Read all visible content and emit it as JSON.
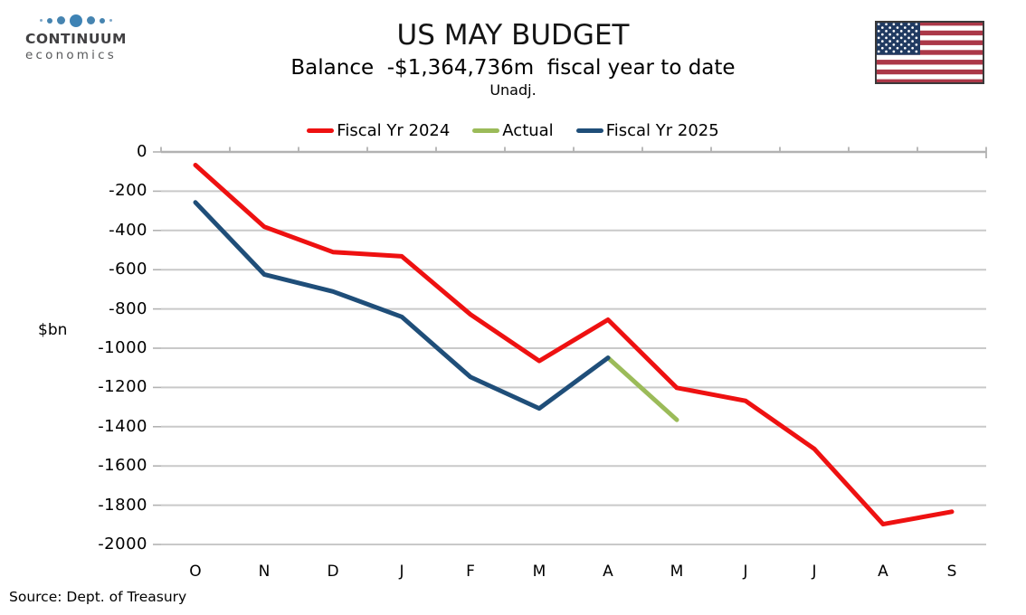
{
  "logo": {
    "line1": "CONTINUUM",
    "line2": "economics"
  },
  "header": {
    "title": "US MAY BUDGET",
    "subtitle": "Balance  -$1,364,736m  fiscal year to date",
    "adjustment": "Unadj."
  },
  "flag_icon": "us-flag-icon",
  "source": "Source: Dept. of Treasury",
  "colors": {
    "fy2024": "#ee1111",
    "actual": "#9bbb59",
    "fy2025": "#1f4e79",
    "gridline": "#c9c9c9",
    "axis": "#b2b2b2",
    "flag_red": "#ab3848",
    "flag_blue": "#203a61",
    "logo_blue": "#4684b0"
  },
  "chart_data": {
    "type": "line",
    "title": "US MAY BUDGET",
    "subtitle": "Balance  -$1,364,736m  fiscal year to date  (Unadj.)",
    "xlabel": "",
    "ylabel": "$bn",
    "categories": [
      "O",
      "N",
      "D",
      "J",
      "F",
      "M",
      "A",
      "M",
      "J",
      "J",
      "A",
      "S"
    ],
    "yticks": [
      0,
      -200,
      -400,
      -600,
      -800,
      -1000,
      -1200,
      -1400,
      -1600,
      -1800,
      -2000
    ],
    "ylim": [
      -2000,
      0
    ],
    "grid": true,
    "legend_position": "top",
    "series": [
      {
        "name": "Fiscal Yr 2024",
        "color": "#ee1111",
        "values": [
          -67,
          -381,
          -510,
          -532,
          -828,
          -1065,
          -855,
          -1202,
          -1268,
          -1513,
          -1897,
          -1833
        ]
      },
      {
        "name": "Actual",
        "color": "#9bbb59",
        "values": [
          null,
          null,
          null,
          null,
          null,
          null,
          -1049,
          -1365,
          null,
          null,
          null,
          null
        ]
      },
      {
        "name": "Fiscal Yr 2025",
        "color": "#1f4e79",
        "values": [
          -257,
          -624,
          -711,
          -840,
          -1147,
          -1307,
          -1049,
          null,
          null,
          null,
          null,
          null
        ]
      }
    ]
  }
}
